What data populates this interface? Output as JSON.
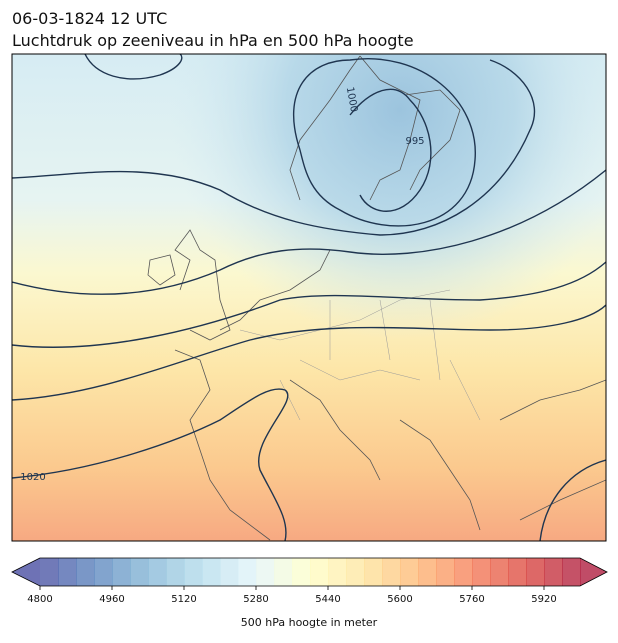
{
  "header": {
    "date": "06-03-1824 12 UTC",
    "title": "Luchtdruk op zeeniveau in hPa en 500 hPa hoogte"
  },
  "map": {
    "contour_labels": [
      "1000",
      "995",
      "1020"
    ]
  },
  "colorbar": {
    "label": "500 hPa hoogte in meter",
    "lim": [
      4800,
      6000
    ],
    "ticks": [
      4800,
      4960,
      5120,
      5280,
      5440,
      5600,
      5760,
      5920
    ],
    "level_step": 40
  }
}
